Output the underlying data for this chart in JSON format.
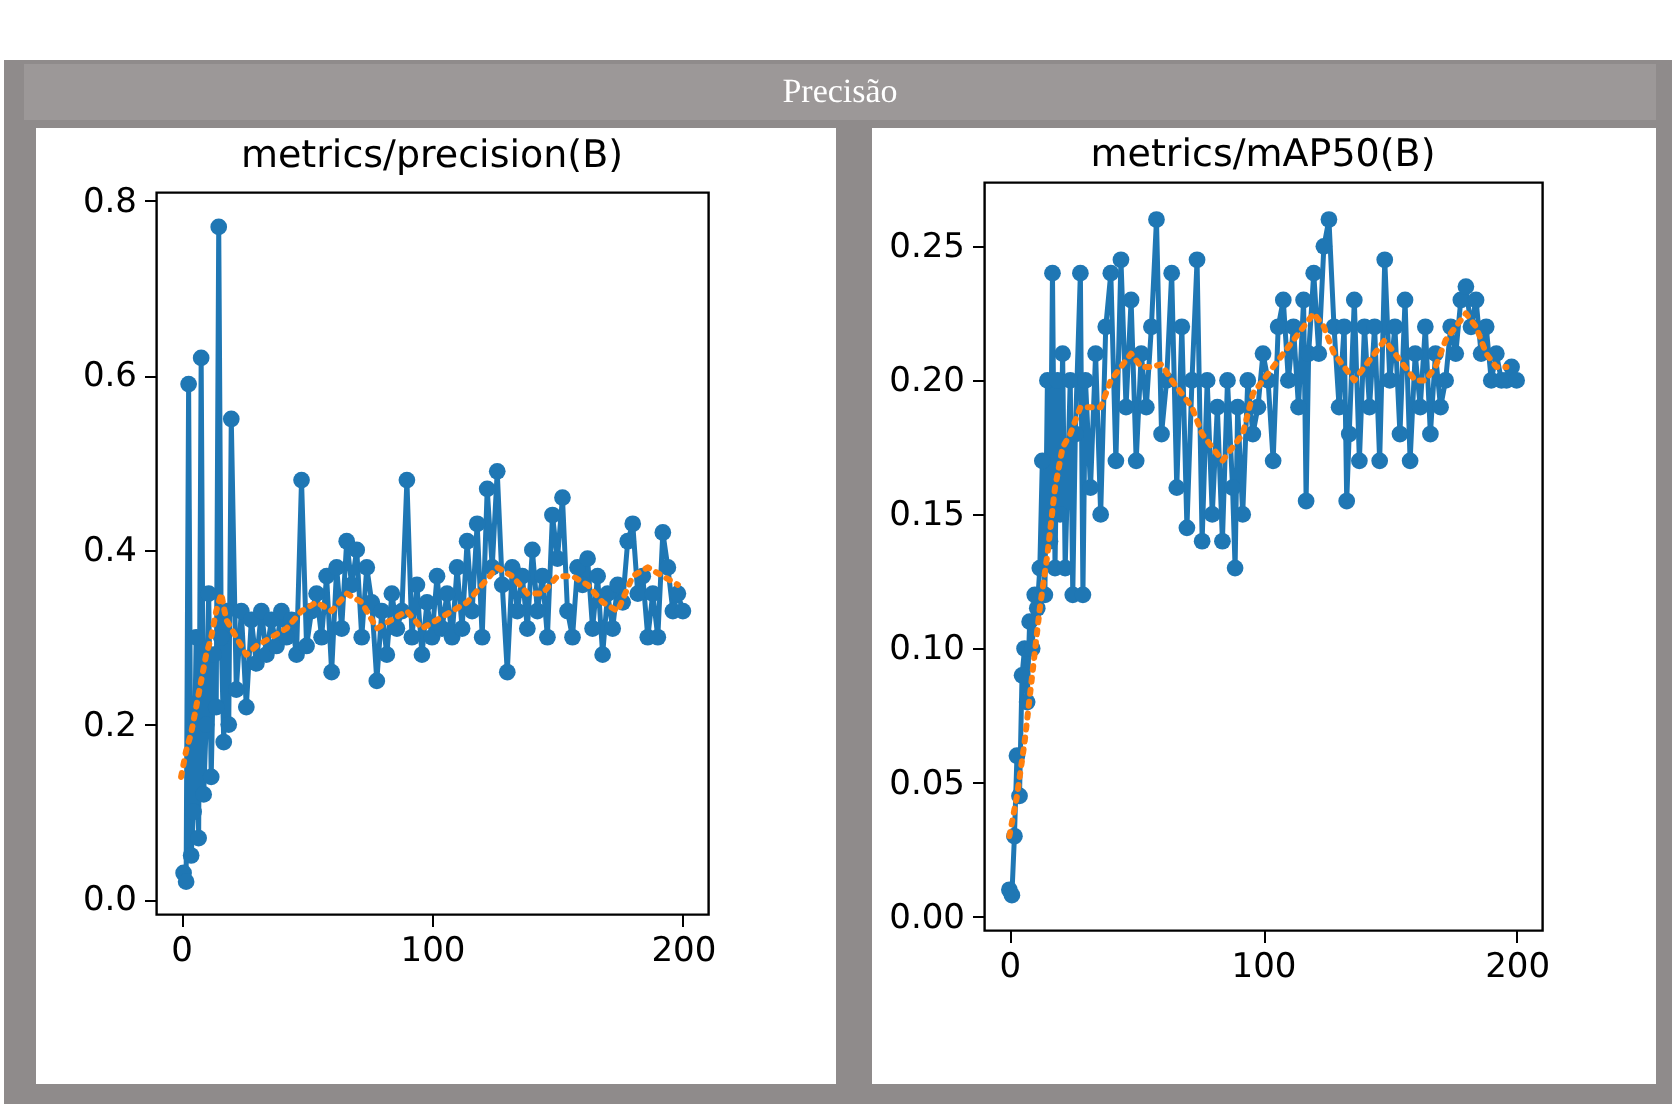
{
  "chart_data": [
    {
      "type": "other",
      "title": "Precisão"
    },
    {
      "type": "line",
      "title": "metrics/precision(B)",
      "xlim": [
        -10,
        210
      ],
      "ylim": [
        -0.017,
        0.81
      ],
      "xticks": [
        0,
        100,
        200
      ],
      "yticks": [
        {
          "value": 0,
          "label": "0.0"
        },
        0.2,
        0.4,
        0.6,
        0.8
      ],
      "grid": false,
      "series": [
        {
          "color": "#1f77b4",
          "marker": "circle",
          "line_style": "solid",
          "x": [
            1,
            2,
            3,
            4,
            5,
            6,
            7,
            8,
            9,
            10,
            11,
            12,
            13,
            14,
            15,
            16,
            17,
            18,
            19,
            20,
            22,
            24,
            26,
            28,
            30,
            32,
            34,
            36,
            38,
            40,
            42,
            44,
            46,
            48,
            50,
            52,
            54,
            56,
            58,
            60,
            62,
            64,
            66,
            68,
            70,
            72,
            74,
            76,
            78,
            80,
            82,
            84,
            86,
            88,
            90,
            92,
            94,
            96,
            98,
            100,
            102,
            104,
            106,
            108,
            110,
            112,
            114,
            116,
            118,
            120,
            122,
            124,
            126,
            128,
            130,
            132,
            134,
            136,
            138,
            140,
            142,
            144,
            146,
            148,
            150,
            152,
            154,
            156,
            158,
            160,
            162,
            164,
            166,
            168,
            170,
            172,
            174,
            176,
            178,
            180,
            182,
            184,
            186,
            188,
            190,
            192,
            194,
            196,
            198,
            200
          ],
          "values": [
            0.03,
            0.02,
            0.59,
            0.05,
            0.1,
            0.3,
            0.07,
            0.62,
            0.12,
            0.2,
            0.35,
            0.14,
            0.28,
            0.22,
            0.77,
            0.3,
            0.18,
            0.33,
            0.2,
            0.55,
            0.24,
            0.33,
            0.22,
            0.32,
            0.27,
            0.33,
            0.28,
            0.32,
            0.29,
            0.33,
            0.3,
            0.32,
            0.28,
            0.48,
            0.29,
            0.33,
            0.35,
            0.3,
            0.37,
            0.26,
            0.38,
            0.31,
            0.41,
            0.36,
            0.4,
            0.3,
            0.38,
            0.34,
            0.25,
            0.33,
            0.28,
            0.35,
            0.31,
            0.33,
            0.48,
            0.3,
            0.36,
            0.28,
            0.34,
            0.3,
            0.37,
            0.31,
            0.35,
            0.3,
            0.38,
            0.31,
            0.41,
            0.33,
            0.43,
            0.3,
            0.47,
            0.38,
            0.49,
            0.36,
            0.26,
            0.38,
            0.33,
            0.37,
            0.31,
            0.4,
            0.33,
            0.37,
            0.3,
            0.44,
            0.39,
            0.46,
            0.33,
            0.3,
            0.38,
            0.36,
            0.39,
            0.31,
            0.37,
            0.28,
            0.35,
            0.31,
            0.36,
            0.34,
            0.41,
            0.43,
            0.35,
            0.37,
            0.3,
            0.35,
            0.3,
            0.42,
            0.38,
            0.33,
            0.35,
            0.33
          ]
        },
        {
          "color": "#ff7f0e",
          "marker": "none",
          "line_style": "dotted",
          "x": [
            0,
            2,
            4,
            6,
            8,
            10,
            12,
            14,
            16,
            18,
            22,
            26,
            30,
            36,
            42,
            48,
            54,
            60,
            66,
            72,
            78,
            84,
            90,
            96,
            102,
            108,
            114,
            120,
            126,
            132,
            138,
            144,
            150,
            156,
            162,
            168,
            174,
            180,
            186,
            192,
            198
          ],
          "values": [
            0.14,
            0.17,
            0.19,
            0.22,
            0.25,
            0.28,
            0.3,
            0.33,
            0.35,
            0.32,
            0.3,
            0.28,
            0.29,
            0.3,
            0.31,
            0.33,
            0.34,
            0.33,
            0.35,
            0.34,
            0.31,
            0.32,
            0.33,
            0.31,
            0.32,
            0.33,
            0.34,
            0.36,
            0.38,
            0.37,
            0.35,
            0.35,
            0.37,
            0.37,
            0.36,
            0.34,
            0.33,
            0.37,
            0.38,
            0.37,
            0.36
          ]
        }
      ]
    },
    {
      "type": "line",
      "title": "metrics/mAP50(B)",
      "xlim": [
        -10,
        210
      ],
      "ylim": [
        -0.005,
        0.274
      ],
      "xticks": [
        0,
        100,
        200
      ],
      "yticks": [
        {
          "value": 0,
          "label": "0.00"
        },
        0.05,
        {
          "value": 0.1,
          "label": "0.10"
        },
        0.15,
        {
          "value": 0.2,
          "label": "0.20"
        },
        0.25
      ],
      "grid": false,
      "series": [
        {
          "color": "#1f77b4",
          "marker": "circle",
          "line_style": "solid",
          "x": [
            0,
            1,
            2,
            3,
            4,
            5,
            6,
            7,
            8,
            9,
            10,
            11,
            12,
            13,
            14,
            15,
            16,
            17,
            18,
            19,
            20,
            21,
            22,
            24,
            25,
            26,
            28,
            29,
            30,
            32,
            34,
            36,
            38,
            40,
            42,
            44,
            46,
            48,
            50,
            52,
            54,
            56,
            58,
            60,
            62,
            64,
            66,
            68,
            70,
            72,
            74,
            76,
            78,
            80,
            82,
            84,
            86,
            88,
            89,
            90,
            92,
            94,
            96,
            98,
            100,
            102,
            104,
            106,
            108,
            110,
            112,
            114,
            116,
            117,
            118,
            120,
            122,
            124,
            126,
            128,
            130,
            132,
            133,
            134,
            136,
            138,
            140,
            142,
            144,
            146,
            148,
            150,
            152,
            154,
            156,
            158,
            160,
            162,
            164,
            166,
            168,
            170,
            172,
            174,
            176,
            178,
            180,
            182,
            184,
            186,
            188,
            190,
            192,
            194,
            196,
            198,
            200
          ],
          "values": [
            0.01,
            0.008,
            0.03,
            0.06,
            0.045,
            0.09,
            0.1,
            0.08,
            0.11,
            0.1,
            0.12,
            0.115,
            0.13,
            0.17,
            0.12,
            0.2,
            0.14,
            0.24,
            0.13,
            0.2,
            0.15,
            0.21,
            0.13,
            0.2,
            0.12,
            0.18,
            0.24,
            0.12,
            0.2,
            0.16,
            0.21,
            0.15,
            0.22,
            0.24,
            0.17,
            0.245,
            0.19,
            0.23,
            0.17,
            0.21,
            0.19,
            0.22,
            0.26,
            0.18,
            0.2,
            0.24,
            0.16,
            0.22,
            0.145,
            0.2,
            0.245,
            0.14,
            0.2,
            0.15,
            0.19,
            0.14,
            0.2,
            0.16,
            0.13,
            0.19,
            0.15,
            0.2,
            0.18,
            0.19,
            0.21,
            0.2,
            0.17,
            0.22,
            0.23,
            0.2,
            0.22,
            0.19,
            0.23,
            0.155,
            0.21,
            0.24,
            0.21,
            0.25,
            0.26,
            0.22,
            0.19,
            0.22,
            0.155,
            0.18,
            0.23,
            0.17,
            0.22,
            0.19,
            0.22,
            0.17,
            0.245,
            0.2,
            0.22,
            0.18,
            0.23,
            0.17,
            0.21,
            0.19,
            0.22,
            0.18,
            0.21,
            0.19,
            0.2,
            0.22,
            0.21,
            0.23,
            0.235,
            0.22,
            0.23,
            0.21,
            0.22,
            0.2,
            0.21,
            0.2,
            0.2,
            0.205,
            0.2
          ]
        },
        {
          "color": "#ff7f0e",
          "marker": "none",
          "line_style": "dotted",
          "x": [
            0,
            3,
            6,
            9,
            12,
            15,
            18,
            21,
            24,
            28,
            32,
            36,
            40,
            44,
            48,
            52,
            56,
            60,
            64,
            68,
            72,
            76,
            80,
            84,
            88,
            92,
            96,
            100,
            104,
            108,
            112,
            116,
            120,
            124,
            128,
            132,
            136,
            140,
            144,
            148,
            152,
            156,
            160,
            164,
            168,
            172,
            176,
            180,
            184,
            188,
            192,
            196
          ],
          "values": [
            0.03,
            0.045,
            0.065,
            0.09,
            0.115,
            0.135,
            0.16,
            0.175,
            0.18,
            0.19,
            0.19,
            0.19,
            0.2,
            0.205,
            0.21,
            0.205,
            0.205,
            0.206,
            0.2,
            0.195,
            0.19,
            0.18,
            0.175,
            0.17,
            0.175,
            0.18,
            0.195,
            0.2,
            0.205,
            0.21,
            0.215,
            0.22,
            0.225,
            0.22,
            0.21,
            0.205,
            0.2,
            0.205,
            0.21,
            0.215,
            0.21,
            0.205,
            0.2,
            0.2,
            0.205,
            0.215,
            0.22,
            0.225,
            0.22,
            0.21,
            0.205,
            0.205
          ]
        }
      ]
    }
  ]
}
